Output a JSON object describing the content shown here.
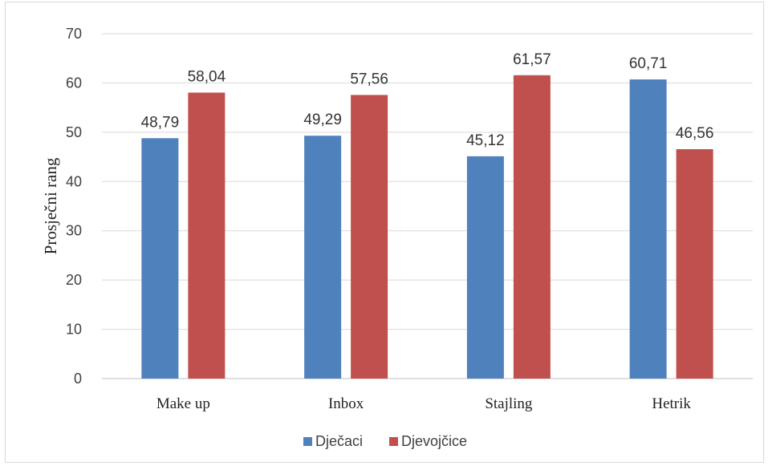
{
  "chart_data": {
    "type": "bar",
    "title": "",
    "xlabel": "",
    "ylabel": "Prosječni rang",
    "ylim": [
      0,
      70
    ],
    "yticks": [
      0,
      10,
      20,
      30,
      40,
      50,
      60,
      70
    ],
    "grid": true,
    "legend_position": "bottom",
    "categories": [
      "Make up",
      "Inbox",
      "Stajling",
      "Hetrik"
    ],
    "series": [
      {
        "name": "Dječaci",
        "color": "#4f81bd",
        "values": [
          48.79,
          49.29,
          45.12,
          60.71
        ],
        "labels": [
          "48,79",
          "49,29",
          "45,12",
          "60,71"
        ]
      },
      {
        "name": "Djevojčice",
        "color": "#c0504d",
        "values": [
          58.04,
          57.56,
          61.57,
          46.56
        ],
        "labels": [
          "58,04",
          "57,56",
          "61,57",
          "46,56"
        ]
      }
    ]
  }
}
